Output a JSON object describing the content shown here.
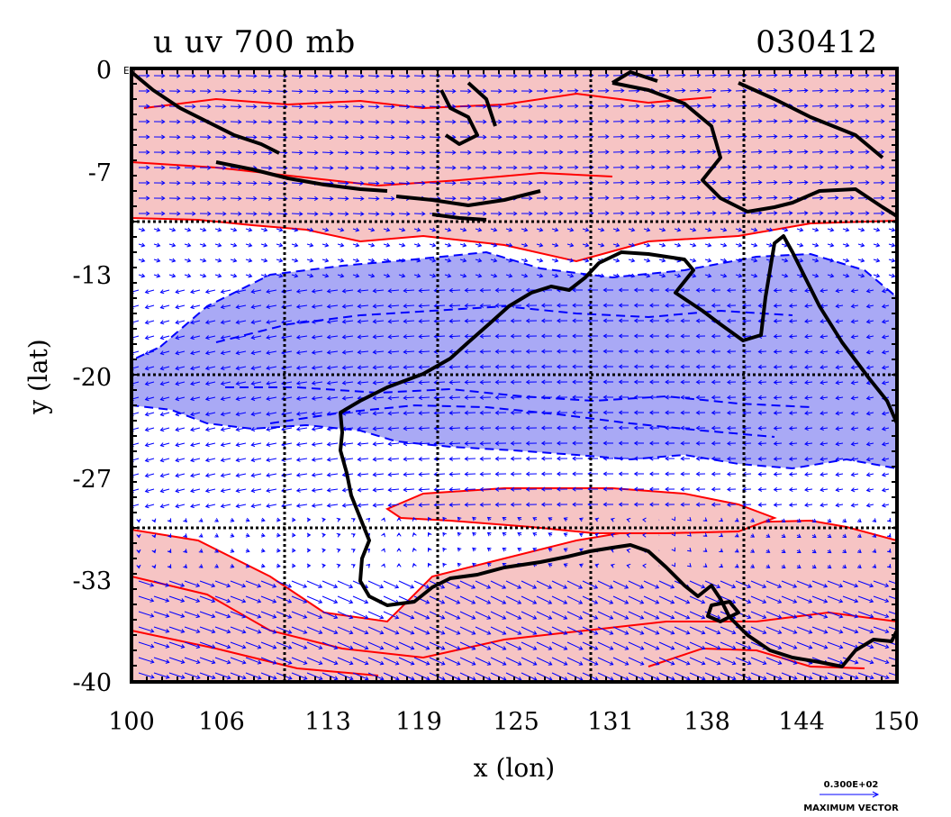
{
  "header": {
    "title": "u uv 700 mb",
    "date_code": "030412"
  },
  "axes": {
    "x_label": "x (lon)",
    "y_label": "y (lat)",
    "x_ticks": [
      "100",
      "106",
      "113",
      "119",
      "125",
      "131",
      "138",
      "144",
      "150"
    ],
    "y_ticks": [
      "0",
      "-7",
      "-13",
      "-20",
      "-27",
      "-33",
      "-40"
    ],
    "equator_marker": "EQ"
  },
  "legend": {
    "vector_magnitude": "0.300E+02",
    "vector_caption": "MAXIMUM VECTOR"
  },
  "chart_data": {
    "type": "map",
    "variable": "u wind component with uv vectors at 700 mb",
    "lon_range": [
      100,
      150
    ],
    "lat_range": [
      -40,
      0
    ],
    "grid_lines_lon": [
      110,
      120,
      130,
      140
    ],
    "grid_lines_lat": [
      -10,
      -20,
      -30
    ],
    "positive_band_colors": {
      "fill": "#f6c4c4",
      "contour": "#ff0000"
    },
    "negative_band_colors": {
      "fill": "#a9a9f5",
      "contour": "#0000ff"
    },
    "coastline_color": "#000000",
    "vector_color": "#0000ff"
  }
}
